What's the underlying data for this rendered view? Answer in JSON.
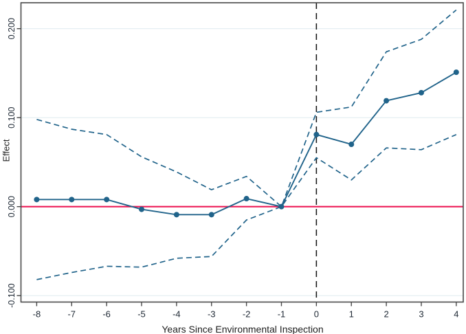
{
  "chart_data": {
    "type": "line",
    "title": "",
    "xlabel": "Years Since Environmental Inspection",
    "ylabel": "Effect",
    "x": [
      -8,
      -7,
      -6,
      -5,
      -4,
      -3,
      -2,
      -1,
      0,
      1,
      2,
      3,
      4
    ],
    "series": [
      {
        "name": "point-estimate",
        "style": "solid",
        "markers": true,
        "values": [
          0.008,
          0.008,
          0.008,
          -0.003,
          -0.009,
          -0.009,
          0.009,
          0.0,
          0.081,
          0.07,
          0.119,
          0.128,
          0.151
        ]
      },
      {
        "name": "ci-upper",
        "style": "dashed",
        "markers": false,
        "values": [
          0.098,
          0.087,
          0.081,
          0.056,
          0.039,
          0.019,
          0.034,
          0.0,
          0.106,
          0.112,
          0.174,
          0.188,
          0.221
        ]
      },
      {
        "name": "ci-lower",
        "style": "dashed",
        "markers": false,
        "values": [
          -0.082,
          -0.074,
          -0.067,
          -0.068,
          -0.058,
          -0.056,
          -0.015,
          0.0,
          0.055,
          0.03,
          0.066,
          0.064,
          0.081
        ]
      }
    ],
    "yticks": {
      "values": [
        -0.1,
        0.0,
        0.1,
        0.2
      ],
      "labels": [
        "-0.100",
        "0.000",
        "0.100",
        "0.200"
      ]
    },
    "xticks": {
      "values": [
        -8,
        -7,
        -6,
        -5,
        -4,
        -3,
        -2,
        -1,
        0,
        1,
        2,
        3,
        4
      ],
      "labels": [
        "-8",
        "-7",
        "-6",
        "-5",
        "-4",
        "-3",
        "-2",
        "-1",
        "0",
        "1",
        "2",
        "3",
        "4"
      ]
    },
    "reference_lines": [
      {
        "name": "zero-reference-line",
        "orientation": "horizontal",
        "value": 0.0,
        "style": "solid",
        "color": "#ed1a56"
      },
      {
        "name": "treatment-start-line",
        "orientation": "vertical",
        "value": 0.0,
        "style": "dashed",
        "color": "#1a1a1a"
      }
    ],
    "xlim": [
      -8.45,
      4.2
    ],
    "ylim": [
      -0.1072,
      0.2291
    ],
    "grid": true,
    "legend_position": "none",
    "colors": {
      "series": "#20638a",
      "grid": "#e2edf1",
      "plot_border": "#474747",
      "background": "#ffffff",
      "tick_text": "#1d2733",
      "axis_title_text": "#1f1f1f"
    }
  }
}
